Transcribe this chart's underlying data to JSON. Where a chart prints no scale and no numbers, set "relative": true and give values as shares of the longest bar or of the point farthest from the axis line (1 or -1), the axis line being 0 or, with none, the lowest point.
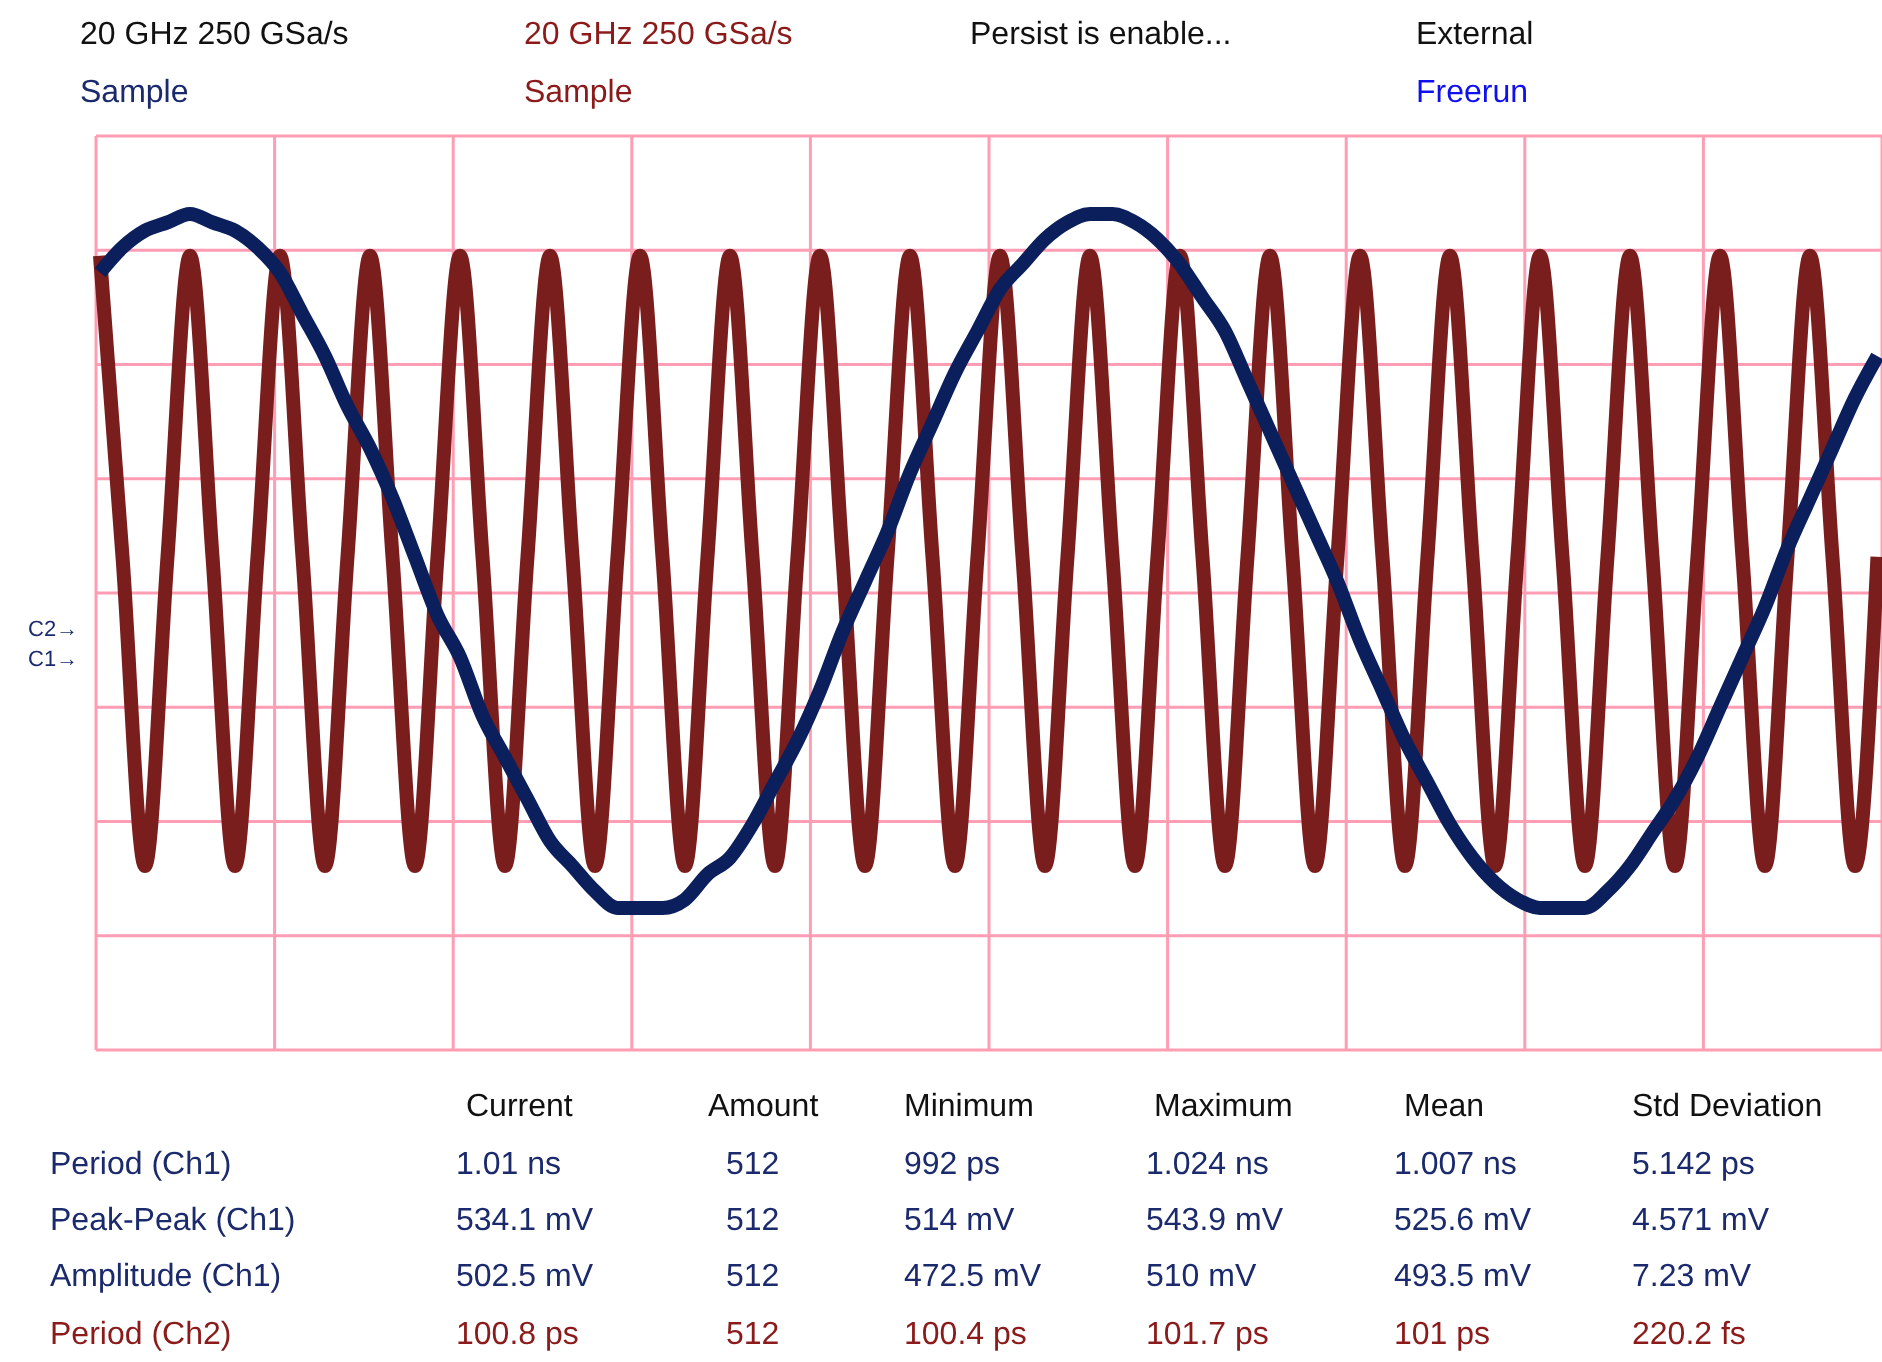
{
  "chart_data": {
    "type": "line",
    "relative": true,
    "grid": true,
    "legend": false,
    "categories": [
      null,
      null,
      null,
      null,
      null,
      null,
      null,
      null,
      null,
      null,
      null,
      null,
      null,
      null,
      null,
      null,
      null,
      null,
      null,
      null,
      null,
      null,
      null,
      null,
      null,
      null,
      null,
      null,
      null,
      null,
      null,
      null,
      null,
      null,
      null,
      null,
      null,
      null,
      null,
      null,
      null,
      null,
      null,
      null,
      null,
      null,
      null,
      null,
      null,
      null,
      null,
      null,
      null,
      null,
      null,
      null,
      null,
      null,
      null,
      null,
      null,
      null,
      null,
      null,
      null,
      null,
      null,
      null,
      null,
      null,
      null,
      null,
      null,
      null,
      null,
      null,
      null,
      null,
      null,
      null
    ],
    "series": [
      {
        "color": "#7a1d1d",
        "values": [
          0.95,
          0.59,
          0.22,
          0.59,
          0.95,
          0.59,
          0.22,
          0.59,
          0.95,
          0.59,
          0.22,
          0.59,
          0.95,
          0.59,
          0.22,
          0.59,
          0.95,
          0.59,
          0.22,
          0.59,
          0.95,
          0.59,
          0.22,
          0.59,
          0.95,
          0.59,
          0.22,
          0.59,
          0.95,
          0.59,
          0.22,
          0.59,
          0.95,
          0.59,
          0.22,
          0.59,
          0.95,
          0.59,
          0.22,
          0.59,
          0.95,
          0.59,
          0.22,
          0.59,
          0.95,
          0.59,
          0.22,
          0.59,
          0.95,
          0.59,
          0.22,
          0.59,
          0.95,
          0.59,
          0.22,
          0.59,
          0.95,
          0.59,
          0.22,
          0.59,
          0.95,
          0.59,
          0.22,
          0.59,
          0.95,
          0.59,
          0.22,
          0.59,
          0.95,
          0.59,
          0.22,
          0.59,
          0.95,
          0.59,
          0.22,
          0.59,
          0.95,
          0.59,
          0.22,
          0.59
        ]
      },
      {
        "color": "#0a1f5c",
        "values": [
          0.93,
          0.96,
          0.98,
          0.99,
          1.0,
          0.99,
          0.98,
          0.96,
          0.93,
          0.88,
          0.83,
          0.77,
          0.72,
          0.66,
          0.59,
          0.52,
          0.47,
          0.4,
          0.35,
          0.3,
          0.25,
          0.22,
          0.19,
          0.17,
          0.17,
          0.17,
          0.18,
          0.21,
          0.23,
          0.27,
          0.32,
          0.37,
          0.43,
          0.5,
          0.56,
          0.62,
          0.69,
          0.75,
          0.81,
          0.86,
          0.91,
          0.94,
          0.97,
          0.99,
          1.0,
          1.0,
          0.99,
          0.97,
          0.94,
          0.9,
          0.86,
          0.8,
          0.74,
          0.68,
          0.62,
          0.56,
          0.49,
          0.43,
          0.37,
          0.32,
          0.27,
          0.23,
          0.2,
          0.18,
          0.17,
          0.17,
          0.17,
          0.19,
          0.22,
          0.26,
          0.3,
          0.35,
          0.41,
          0.47,
          0.53,
          0.6,
          0.66,
          0.72,
          0.78,
          0.83
        ]
      }
    ],
    "annotations": [
      "20 GHz   250 GSa/s",
      "Sample",
      "20 GHz   250 GSa/s",
      "Sample",
      "Persist  is enable...",
      "External",
      "Freerun",
      "C2→",
      "C1→",
      "Current",
      "Amount",
      "Minimum",
      "Maximum",
      "Mean",
      "Std Deviation",
      "Period (Ch1)",
      "1.01 ns",
      "512",
      "992 ps",
      "1.024 ns",
      "1.007 ns",
      "5.142 ps",
      "Peak-Peak (Ch1)",
      "534.1 mV",
      "512",
      "514 mV",
      "543.9 mV",
      "525.6 mV",
      "4.571 mV",
      "Amplitude (Ch1)",
      "502.5 mV",
      "512",
      "472.5 mV",
      "510 mV",
      "493.5 mV",
      "7.23 mV",
      "Period (Ch2)",
      "100.8 ps",
      "512",
      "100.4 ps",
      "101.7 ps",
      "101 ps",
      "220.2 fs"
    ]
  }
}
